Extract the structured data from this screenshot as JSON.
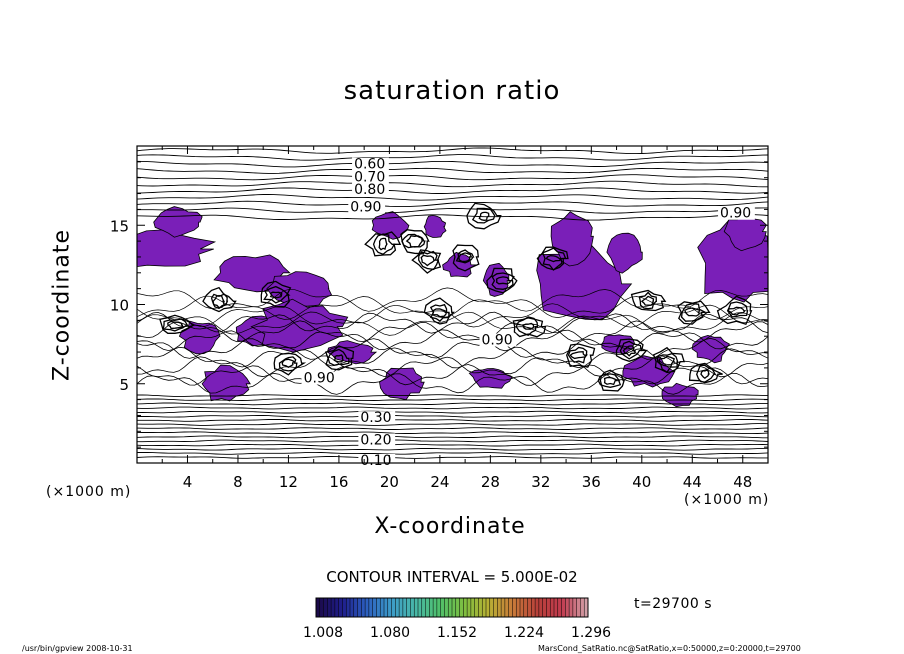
{
  "chart_data": {
    "type": "contour",
    "title": "saturation ratio",
    "xlabel": "X-coordinate",
    "ylabel": "Z-coordinate",
    "x_unit": "(×1000 m)",
    "y_unit": "(×1000 m)",
    "xlim": [
      0,
      50
    ],
    "ylim": [
      0,
      20
    ],
    "x_ticks": [
      "4",
      "8",
      "12",
      "16",
      "20",
      "24",
      "28",
      "32",
      "36",
      "40",
      "44",
      "48"
    ],
    "y_ticks": [
      "5",
      "10",
      "15"
    ],
    "contour_labels": [
      {
        "text": "0.60",
        "x": 17.2,
        "z": 18.7
      },
      {
        "text": "0.70",
        "x": 17.2,
        "z": 17.9
      },
      {
        "text": "0.80",
        "x": 17.2,
        "z": 17.1
      },
      {
        "text": "0.90",
        "x": 16.9,
        "z": 16.0
      },
      {
        "text": "0.90",
        "x": 46.2,
        "z": 15.6
      },
      {
        "text": "0.90",
        "x": 27.3,
        "z": 7.6
      },
      {
        "text": "0.90",
        "x": 13.2,
        "z": 5.2
      },
      {
        "text": "0.30",
        "x": 17.7,
        "z": 2.7
      },
      {
        "text": "0.20",
        "x": 17.7,
        "z": 1.3
      },
      {
        "text": "0.10",
        "x": 17.7,
        "z": 0.0
      }
    ],
    "contour_interval_text": "CONTOUR INTERVAL = 5.000E-02",
    "colorbar": {
      "ticks": [
        "1.008",
        "1.080",
        "1.152",
        "1.224",
        "1.296"
      ],
      "colors": [
        "#1b0a4a",
        "#1f1e8c",
        "#2c5fbf",
        "#3d9bc9",
        "#49b8a8",
        "#4fbf6a",
        "#7fbf40",
        "#b8b034",
        "#c97a3a",
        "#b8403a",
        "#c23b4f",
        "#d2a0a8"
      ]
    },
    "shade_color": "#7a1fb8",
    "shaded_meaning": "saturation ratio > 1.0",
    "time_label": "t=29700 s"
  },
  "footer": {
    "left": "/usr/bin/gpview   2008-10-31",
    "right": "MarsCond_SatRatio.nc@SatRatio,x=0:50000,z=0:20000,t=29700"
  }
}
